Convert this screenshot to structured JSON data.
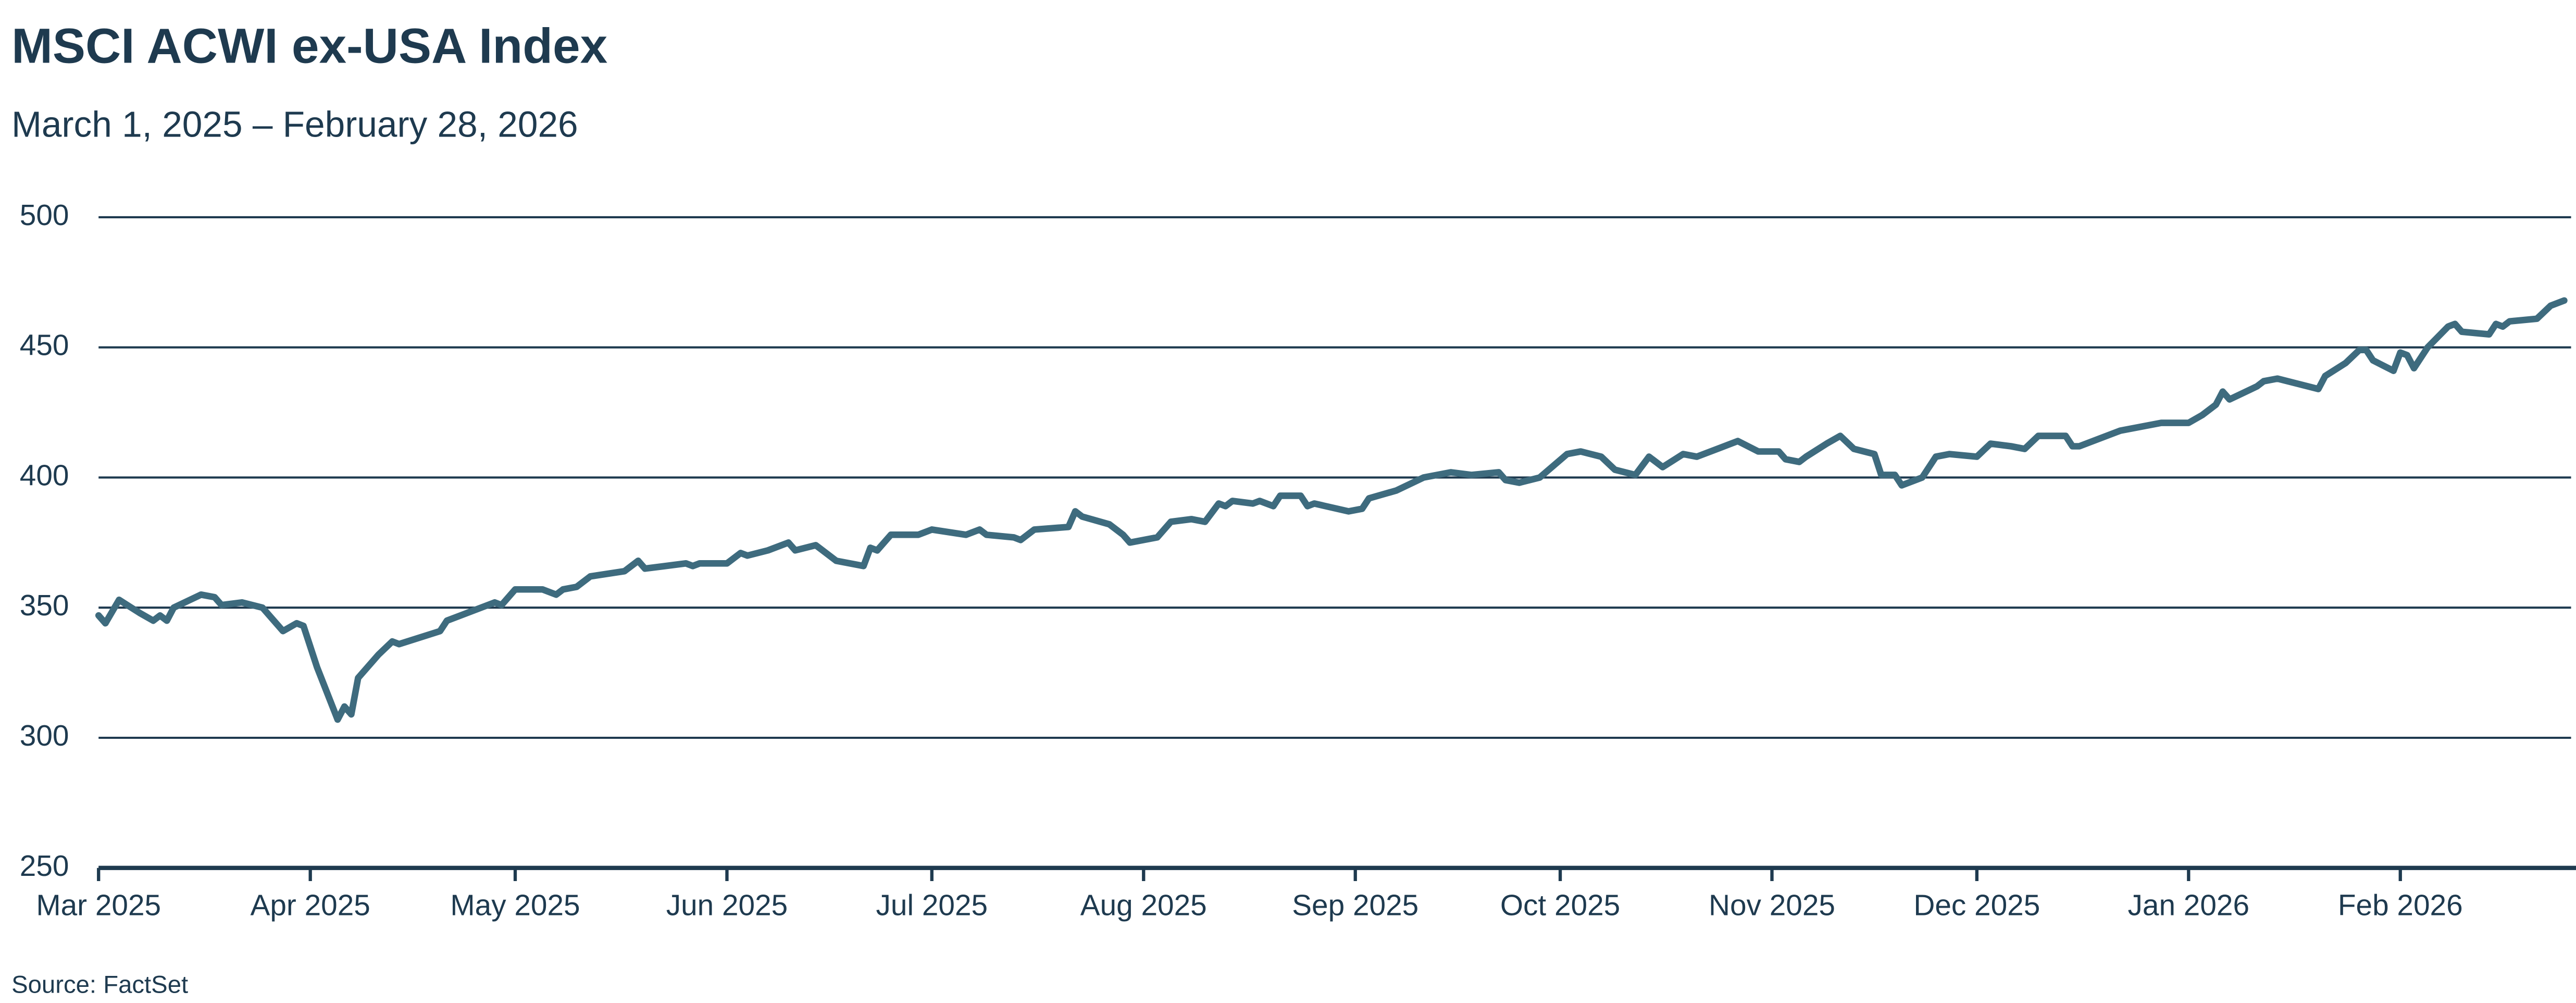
{
  "chart_data": {
    "type": "line",
    "title": "MSCI ACWI ex-USA Index",
    "subtitle": "March 1, 2025 – February 28, 2026",
    "source": "Source: FactSet",
    "color": "#3e6b7e",
    "grid": true,
    "x": [
      "2025-03-01",
      "2025-03-02",
      "2025-03-04",
      "2025-03-07",
      "2025-03-09",
      "2025-03-10",
      "2025-03-11",
      "2025-03-12",
      "2025-03-16",
      "2025-03-18",
      "2025-03-19",
      "2025-03-22",
      "2025-03-25",
      "2025-03-28",
      "2025-03-30",
      "2025-03-31",
      "2025-04-02",
      "2025-04-05",
      "2025-04-06",
      "2025-04-07",
      "2025-04-08",
      "2025-04-11",
      "2025-04-13",
      "2025-04-14",
      "2025-04-20",
      "2025-04-21",
      "2025-04-28",
      "2025-04-29",
      "2025-05-01",
      "2025-05-05",
      "2025-05-07",
      "2025-05-08",
      "2025-05-10",
      "2025-05-12",
      "2025-05-17",
      "2025-05-19",
      "2025-05-20",
      "2025-05-26",
      "2025-05-27",
      "2025-05-28",
      "2025-06-01",
      "2025-06-03",
      "2025-06-04",
      "2025-06-07",
      "2025-06-10",
      "2025-06-11",
      "2025-06-14",
      "2025-06-15",
      "2025-06-17",
      "2025-06-21",
      "2025-06-22",
      "2025-06-23",
      "2025-06-25",
      "2025-06-29",
      "2025-07-01",
      "2025-07-06",
      "2025-07-08",
      "2025-07-09",
      "2025-07-13",
      "2025-07-14",
      "2025-07-16",
      "2025-07-21",
      "2025-07-22",
      "2025-07-23",
      "2025-07-27",
      "2025-07-29",
      "2025-07-30",
      "2025-08-03",
      "2025-08-05",
      "2025-08-08",
      "2025-08-10",
      "2025-08-12",
      "2025-08-13",
      "2025-08-14",
      "2025-08-17",
      "2025-08-18",
      "2025-08-20",
      "2025-08-21",
      "2025-08-24",
      "2025-08-25",
      "2025-08-26",
      "2025-08-31",
      "2025-09-02",
      "2025-09-03",
      "2025-09-07",
      "2025-09-11",
      "2025-09-15",
      "2025-09-18",
      "2025-09-22",
      "2025-09-23",
      "2025-09-25",
      "2025-09-28",
      "2025-10-02",
      "2025-10-04",
      "2025-10-07",
      "2025-10-09",
      "2025-10-12",
      "2025-10-14",
      "2025-10-16",
      "2025-10-19",
      "2025-10-21",
      "2025-10-26",
      "2025-10-27",
      "2025-10-30",
      "2025-11-02",
      "2025-11-03",
      "2025-11-05",
      "2025-11-06",
      "2025-11-09",
      "2025-11-11",
      "2025-11-13",
      "2025-11-16",
      "2025-11-17",
      "2025-11-19",
      "2025-11-20",
      "2025-11-23",
      "2025-11-25",
      "2025-11-27",
      "2025-12-01",
      "2025-12-03",
      "2025-12-06",
      "2025-12-08",
      "2025-12-10",
      "2025-12-14",
      "2025-12-15",
      "2025-12-16",
      "2025-12-22",
      "2025-12-26",
      "2025-12-28",
      "2026-01-01",
      "2026-01-03",
      "2026-01-05",
      "2026-01-06",
      "2026-01-07",
      "2026-01-11",
      "2026-01-12",
      "2026-01-14",
      "2026-01-20",
      "2026-01-21",
      "2026-01-24",
      "2026-01-26",
      "2026-01-27",
      "2026-01-28",
      "2026-01-31",
      "2026-02-01",
      "2026-02-02",
      "2026-02-03",
      "2026-02-05",
      "2026-02-08",
      "2026-02-09",
      "2026-02-10",
      "2026-02-14",
      "2026-02-15",
      "2026-02-16",
      "2026-02-17",
      "2026-02-21",
      "2026-02-23",
      "2026-02-25"
    ],
    "values": [
      347,
      344,
      353,
      348,
      345,
      347,
      345,
      350,
      355,
      354,
      351,
      352,
      350,
      341,
      344,
      343,
      327,
      307,
      312,
      309,
      323,
      332,
      337,
      336,
      341,
      345,
      352,
      351,
      357,
      357,
      355,
      357,
      358,
      362,
      364,
      368,
      365,
      367,
      366,
      367,
      367,
      371,
      370,
      372,
      375,
      372,
      374,
      372,
      368,
      366,
      373,
      372,
      378,
      378,
      380,
      378,
      380,
      378,
      377,
      376,
      380,
      381,
      387,
      385,
      382,
      378,
      375,
      377,
      383,
      384,
      383,
      390,
      389,
      391,
      390,
      391,
      389,
      393,
      393,
      389,
      390,
      387,
      388,
      392,
      395,
      400,
      402,
      401,
      402,
      399,
      398,
      400,
      409,
      410,
      408,
      403,
      401,
      408,
      404,
      409,
      408,
      413,
      414,
      410,
      410,
      407,
      406,
      408,
      413,
      416,
      411,
      409,
      401,
      401,
      397,
      400,
      408,
      409,
      408,
      413,
      412,
      411,
      416,
      416,
      412,
      412,
      418,
      420,
      421,
      421,
      424,
      428,
      433,
      430,
      435,
      437,
      438,
      434,
      439,
      444,
      449,
      449,
      445,
      441,
      448,
      447,
      442,
      450,
      458,
      459,
      456,
      455,
      459,
      458,
      460,
      461,
      466,
      468
    ],
    "xlim": [
      "2025-03-01",
      "2026-02-26"
    ],
    "xticks": [
      {
        "value": "2025-03-01",
        "label": "Mar 2025"
      },
      {
        "value": "2025-04-01",
        "label": "Apr 2025"
      },
      {
        "value": "2025-05-01",
        "label": "May 2025"
      },
      {
        "value": "2025-06-01",
        "label": "Jun 2025"
      },
      {
        "value": "2025-07-01",
        "label": "Jul 2025"
      },
      {
        "value": "2025-08-01",
        "label": "Aug 2025"
      },
      {
        "value": "2025-09-01",
        "label": "Sep 2025"
      },
      {
        "value": "2025-10-01",
        "label": "Oct 2025"
      },
      {
        "value": "2025-11-01",
        "label": "Nov 2025"
      },
      {
        "value": "2025-12-01",
        "label": "Dec 2025"
      },
      {
        "value": "2026-01-01",
        "label": "Jan 2026"
      },
      {
        "value": "2026-02-01",
        "label": "Feb 2026"
      }
    ],
    "ylim": [
      250,
      500
    ],
    "yticks": [
      250,
      300,
      350,
      400,
      450,
      500
    ]
  }
}
